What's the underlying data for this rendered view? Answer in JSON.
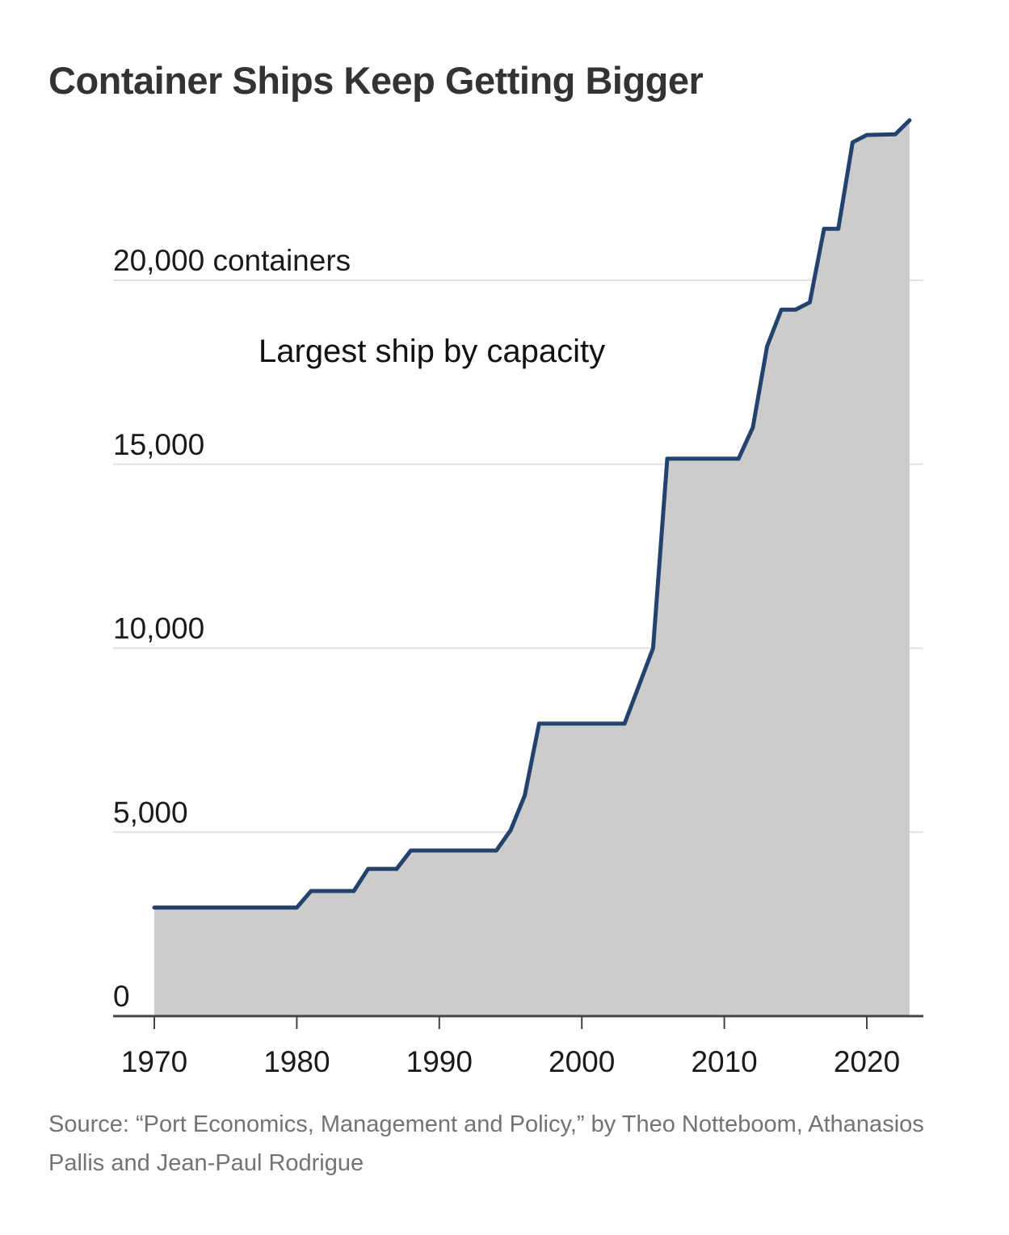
{
  "chart_data": {
    "type": "area",
    "title": "Container Ships Keep Getting Bigger",
    "annotation": "Largest ship by capacity",
    "xlim": [
      1970,
      2023
    ],
    "ylim": [
      0,
      24000
    ],
    "x_ticks": [
      1970,
      1980,
      1990,
      2000,
      2010,
      2020
    ],
    "x_tick_labels": [
      "1970",
      "1980",
      "1990",
      "2000",
      "2010",
      "2020"
    ],
    "y_ticks": [
      0,
      5000,
      10000,
      15000,
      20000
    ],
    "y_tick_labels": [
      "0",
      "5,000",
      "10,000",
      "15,000",
      "20,000 containers"
    ],
    "grid": true,
    "colors": {
      "line": "#23436e",
      "fill": "#cccccc",
      "grid": "#e2e2e2",
      "axis": "#444444"
    },
    "series": [
      {
        "x": [
          1970,
          1980,
          1981,
          1984,
          1985,
          1987,
          1988,
          1994,
          1995,
          1996,
          1997,
          2003,
          2005,
          2006,
          2011,
          2012,
          2013,
          2014,
          2015,
          2016,
          2017,
          2018,
          2019,
          2020,
          2022,
          2023
        ],
        "values": [
          2950,
          2950,
          3400,
          3400,
          4000,
          4000,
          4500,
          4500,
          5050,
          6000,
          7950,
          7950,
          10000,
          15150,
          15150,
          16000,
          18200,
          19200,
          19200,
          19400,
          21400,
          21400,
          23750,
          23950,
          23970,
          24350
        ]
      }
    ]
  },
  "source": "Source: “Port Economics, Management and Policy,” by Theo Notteboom, Athanasios Pallis and Jean-Paul Rodrigue"
}
